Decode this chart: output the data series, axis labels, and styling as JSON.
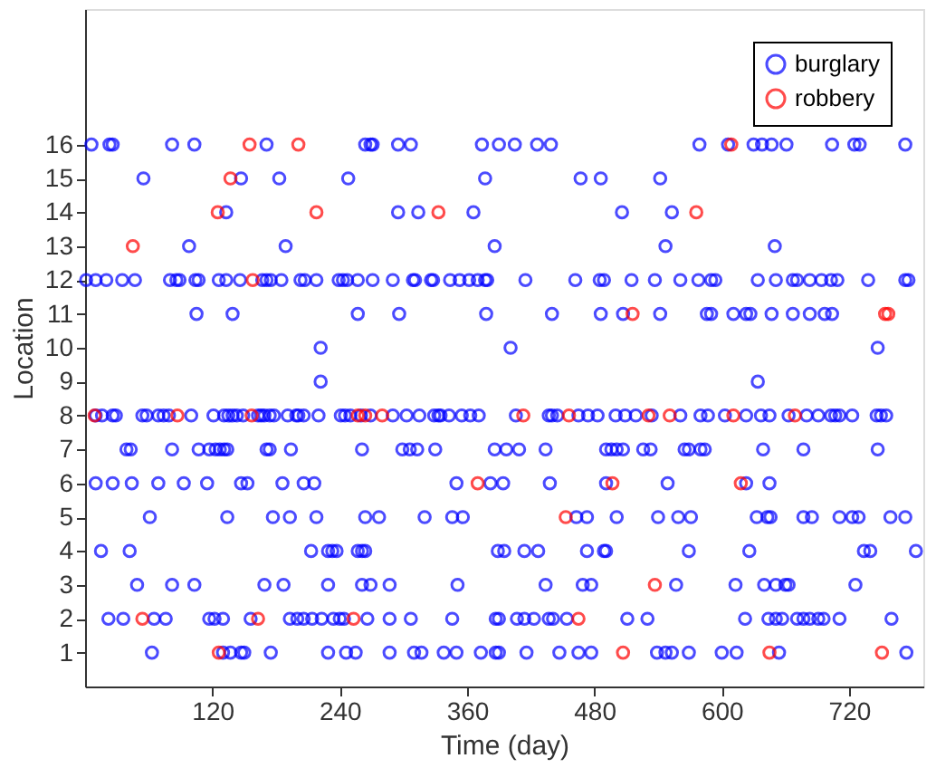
{
  "chart_data": {
    "type": "scatter",
    "xlabel": "Time (day)",
    "ylabel": "Location",
    "xlim": [
      0,
      790
    ],
    "xticks": [
      120,
      240,
      360,
      480,
      600,
      720
    ],
    "ylim": [
      0,
      20
    ],
    "yticks": [
      1,
      2,
      3,
      4,
      5,
      6,
      7,
      8,
      9,
      10,
      11,
      12,
      13,
      14,
      15,
      16
    ],
    "marker": "circle",
    "legend": "top right",
    "grid": false,
    "series": [
      {
        "name": "burglary",
        "color": "#0000ff",
        "x": [
          6,
          23,
          26,
          82,
          103,
          171,
          264,
          269,
          271,
          295,
          307,
          374,
          390,
          405,
          426,
          439,
          579,
          606,
          630,
          638,
          647,
          661,
          704,
          725,
          730,
          773,
          55,
          147,
          183,
          248,
          377,
          467,
          486,
          542,
          133,
          295,
          314,
          366,
          506,
          553,
          98,
          189,
          386,
          547,
          650,
          1,
          10,
          20,
          35,
          47,
          80,
          86,
          89,
          104,
          107,
          126,
          133,
          146,
          167,
          171,
          175,
          185,
          203,
          207,
          218,
          239,
          243,
          247,
          257,
          271,
          290,
          309,
          311,
          326,
          328,
          344,
          353,
          362,
          370,
          377,
          379,
          415,
          462,
          485,
          489,
          515,
          537,
          561,
          578,
          590,
          594,
          634,
          651,
          667,
          671,
          683,
          694,
          703,
          709,
          738,
          773,
          776,
          105,
          139,
          257,
          296,
          378,
          440,
          486,
          507,
          542,
          586,
          590,
          611,
          623,
          627,
          647,
          667,
          683,
          697,
          704,
          222,
          401,
          747,
          222,
          634,
          10,
          16,
          26,
          29,
          54,
          58,
          69,
          74,
          79,
          100,
          121,
          131,
          135,
          139,
          143,
          149,
          163,
          166,
          169,
          174,
          178,
          191,
          199,
          201,
          206,
          220,
          241,
          245,
          250,
          260,
          269,
          290,
          303,
          315,
          329,
          333,
          335,
          343,
          355,
          363,
          371,
          406,
          437,
          440,
          445,
          465,
          474,
          483,
          500,
          509,
          519,
          534,
          561,
          580,
          587,
          603,
          623,
          637,
          645,
          663,
          680,
          691,
          703,
          707,
          711,
          723,
          746,
          750,
          755,
          39,
          43,
          82,
          107,
          117,
          123,
          127,
          131,
          134,
          171,
          174,
          194,
          261,
          299,
          306,
          313,
          330,
          386,
          397,
          409,
          434,
          491,
          496,
          501,
          507,
          526,
          533,
          565,
          569,
          580,
          584,
          639,
          677,
          747,
          10,
          26,
          44,
          69,
          93,
          115,
          147,
          153,
          186,
          206,
          216,
          350,
          382,
          394,
          438,
          491,
          549,
          623,
          645,
          61,
          134,
          177,
          193,
          218,
          264,
          277,
          320,
          346,
          356,
          463,
          473,
          501,
          540,
          559,
          571,
          633,
          643,
          646,
          677,
          685,
          711,
          723,
          729,
          759,
          773,
          15,
          42,
          213,
          229,
          233,
          237,
          257,
          261,
          264,
          389,
          395,
          414,
          427,
          473,
          489,
          491,
          569,
          626,
          734,
          740,
          783,
          49,
          82,
          103,
          169,
          187,
          229,
          261,
          269,
          287,
          351,
          434,
          469,
          477,
          557,
          613,
          640,
          651,
          660,
          663,
          726,
          22,
          36,
          65,
          76,
          117,
          122,
          130,
          156,
          193,
          200,
          206,
          214,
          223,
          234,
          240,
          244,
          266,
          287,
          307,
          346,
          387,
          390,
          407,
          414,
          423,
          437,
          441,
          454,
          511,
          530,
          622,
          644,
          651,
          657,
          671,
          677,
          683,
          691,
          696,
          711,
          760,
          63,
          130,
          137,
          147,
          150,
          175,
          229,
          246,
          255,
          287,
          310,
          317,
          338,
          350,
          373,
          387,
          390,
          416,
          447,
          465,
          477,
          539,
          547,
          553,
          569,
          600,
          614,
          654,
          774
        ],
        "values": [
          16,
          16,
          16,
          16,
          16,
          16,
          16,
          16,
          16,
          16,
          16,
          16,
          16,
          16,
          16,
          16,
          16,
          16,
          16,
          16,
          16,
          16,
          16,
          16,
          16,
          16,
          15,
          15,
          15,
          15,
          15,
          15,
          15,
          15,
          14,
          14,
          14,
          14,
          14,
          14,
          13,
          13,
          13,
          13,
          13,
          12,
          12,
          12,
          12,
          12,
          12,
          12,
          12,
          12,
          12,
          12,
          12,
          12,
          12,
          12,
          12,
          12,
          12,
          12,
          12,
          12,
          12,
          12,
          12,
          12,
          12,
          12,
          12,
          12,
          12,
          12,
          12,
          12,
          12,
          12,
          12,
          12,
          12,
          12,
          12,
          12,
          12,
          12,
          12,
          12,
          12,
          12,
          12,
          12,
          12,
          12,
          12,
          12,
          12,
          12,
          12,
          12,
          11,
          11,
          11,
          11,
          11,
          11,
          11,
          11,
          11,
          11,
          11,
          11,
          11,
          11,
          11,
          11,
          11,
          11,
          11,
          10,
          10,
          10,
          9,
          9,
          8,
          8,
          8,
          8,
          8,
          8,
          8,
          8,
          8,
          8,
          8,
          8,
          8,
          8,
          8,
          8,
          8,
          8,
          8,
          8,
          8,
          8,
          8,
          8,
          8,
          8,
          8,
          8,
          8,
          8,
          8,
          8,
          8,
          8,
          8,
          8,
          8,
          8,
          8,
          8,
          8,
          8,
          8,
          8,
          8,
          8,
          8,
          8,
          8,
          8,
          8,
          8,
          8,
          8,
          8,
          8,
          8,
          8,
          8,
          8,
          8,
          8,
          8,
          8,
          8,
          8,
          8,
          8,
          8,
          7,
          7,
          7,
          7,
          7,
          7,
          7,
          7,
          7,
          7,
          7,
          7,
          7,
          7,
          7,
          7,
          7,
          7,
          7,
          7,
          7,
          7,
          7,
          7,
          7,
          7,
          7,
          7,
          7,
          7,
          7,
          7,
          7,
          7,
          6,
          6,
          6,
          6,
          6,
          6,
          6,
          6,
          6,
          6,
          6,
          6,
          6,
          6,
          6,
          6,
          6,
          6,
          6,
          5,
          5,
          5,
          5,
          5,
          5,
          5,
          5,
          5,
          5,
          5,
          5,
          5,
          5,
          5,
          5,
          5,
          5,
          5,
          5,
          5,
          5,
          5,
          5,
          5,
          5,
          4,
          4,
          4,
          4,
          4,
          4,
          4,
          4,
          4,
          4,
          4,
          4,
          4,
          4,
          4,
          4,
          4,
          4,
          4,
          4,
          4,
          3,
          3,
          3,
          3,
          3,
          3,
          3,
          3,
          3,
          3,
          3,
          3,
          3,
          3,
          3,
          3,
          3,
          3,
          3,
          3,
          2,
          2,
          2,
          2,
          2,
          2,
          2,
          2,
          2,
          2,
          2,
          2,
          2,
          2,
          2,
          2,
          2,
          2,
          2,
          2,
          2,
          2,
          2,
          2,
          2,
          2,
          2,
          2,
          2,
          2,
          2,
          2,
          2,
          2,
          2,
          2,
          2,
          2,
          2,
          2,
          2,
          1,
          1,
          1,
          1,
          1,
          1,
          1,
          1,
          1,
          1,
          1,
          1,
          1,
          1,
          1,
          1,
          1,
          1,
          1,
          1,
          1,
          1,
          1,
          1,
          1,
          1,
          1,
          1,
          1
        ]
      },
      {
        "name": "robbery",
        "color": "#ff0000",
        "x": [
          155,
          201,
          609,
          137,
          125,
          218,
          333,
          576,
          45,
          158,
          754,
          757,
          516,
          9,
          87,
          157,
          257,
          264,
          280,
          413,
          456,
          531,
          551,
          611,
          669,
          370,
          497,
          618,
          453,
          537,
          54,
          163,
          253,
          465,
          126,
          507,
          645,
          751
        ],
        "values": [
          16,
          16,
          16,
          15,
          14,
          14,
          14,
          14,
          13,
          12,
          11,
          11,
          11,
          8,
          8,
          8,
          8,
          8,
          8,
          8,
          8,
          8,
          8,
          8,
          8,
          6,
          6,
          6,
          5,
          3,
          2,
          2,
          2,
          2,
          1,
          1,
          1,
          1
        ]
      }
    ]
  }
}
